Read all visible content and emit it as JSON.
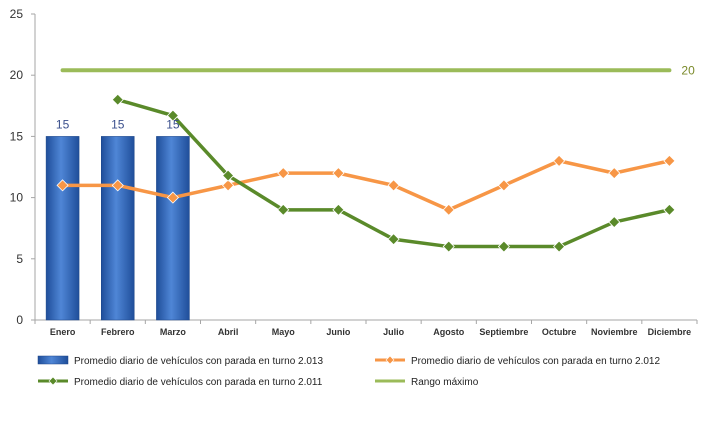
{
  "chart_data": {
    "type": "bar",
    "categories": [
      "Enero",
      "Febrero",
      "Marzo",
      "Abril",
      "Mayo",
      "Junio",
      "Julio",
      "Agosto",
      "Septiembre",
      "Octubre",
      "Noviembre",
      "Diciembre"
    ],
    "ylim": [
      0,
      25
    ],
    "yticks": [
      0,
      5,
      10,
      15,
      20,
      25
    ],
    "grid": false,
    "legend_position": "bottom",
    "series": [
      {
        "name": "Promedio diario de vehículos con parada en turno 2.013",
        "type": "bar",
        "color": "#2e6bbf",
        "values": [
          15,
          15,
          15,
          null,
          null,
          null,
          null,
          null,
          null,
          null,
          null,
          null
        ],
        "labels": [
          "15",
          "15",
          "15"
        ]
      },
      {
        "name": "Promedio diario de vehículos con parada en turno 2.012",
        "type": "line",
        "color": "#f79646",
        "values": [
          11,
          11,
          10,
          11,
          12,
          12,
          11,
          9,
          11,
          13,
          12,
          13
        ]
      },
      {
        "name": "Promedio diario de vehículos con parada en turno 2.011",
        "type": "line",
        "color": "#5a8a2a",
        "values": [
          null,
          18,
          16.7,
          11.8,
          9,
          9,
          6.6,
          6,
          6,
          6,
          8,
          9
        ]
      },
      {
        "name": "Rango máximo",
        "type": "line",
        "color": "#9bbb59",
        "values": [
          20.4,
          20.4,
          20.4,
          20.4,
          20.4,
          20.4,
          20.4,
          20.4,
          20.4,
          20.4,
          20.4,
          20.4
        ],
        "end_label": "20"
      }
    ]
  }
}
